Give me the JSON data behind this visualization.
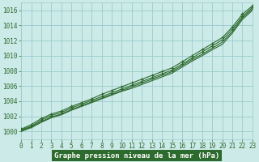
{
  "title": "Graphe pression niveau de la mer (hPa)",
  "background_color": "#cceae8",
  "plot_bg_color": "#cceae8",
  "grid_color": "#99cccc",
  "line_color": "#2d6a2d",
  "marker_color": "#2d6a2d",
  "xlabel_bg": "#2d6a2d",
  "xlabel_fg": "#ffffff",
  "xmin": 0,
  "xmax": 23,
  "ymin": 999,
  "ymax": 1017,
  "yticks": [
    1000,
    1002,
    1004,
    1006,
    1008,
    1010,
    1012,
    1014,
    1016
  ],
  "xticks": [
    0,
    1,
    2,
    3,
    4,
    5,
    6,
    7,
    8,
    9,
    10,
    11,
    12,
    13,
    14,
    15,
    16,
    17,
    18,
    19,
    20,
    21,
    22,
    23
  ],
  "series": [
    [
      1000.0,
      1000.5,
      1001.2,
      1001.8,
      1002.2,
      1002.8,
      1003.3,
      1003.8,
      1004.3,
      1004.8,
      1005.3,
      1005.7,
      1006.2,
      1006.7,
      1007.2,
      1007.7,
      1008.5,
      1009.3,
      1010.0,
      1010.8,
      1011.5,
      1013.0,
      1014.8,
      1016.0
    ],
    [
      1000.1,
      1000.6,
      1001.3,
      1001.9,
      1002.3,
      1002.9,
      1003.4,
      1003.9,
      1004.4,
      1004.9,
      1005.4,
      1005.9,
      1006.4,
      1006.9,
      1007.4,
      1007.9,
      1008.7,
      1009.5,
      1010.2,
      1011.0,
      1011.8,
      1013.2,
      1015.0,
      1016.2
    ],
    [
      1000.2,
      1000.7,
      1001.5,
      1002.1,
      1002.5,
      1003.1,
      1003.6,
      1004.1,
      1004.6,
      1005.1,
      1005.6,
      1006.1,
      1006.6,
      1007.1,
      1007.6,
      1008.1,
      1008.9,
      1009.7,
      1010.5,
      1011.3,
      1012.1,
      1013.5,
      1015.2,
      1016.4
    ],
    [
      1000.3,
      1000.9,
      1001.7,
      1002.3,
      1002.7,
      1003.3,
      1003.8,
      1004.3,
      1004.9,
      1005.4,
      1005.9,
      1006.4,
      1006.9,
      1007.4,
      1007.9,
      1008.4,
      1009.2,
      1010.0,
      1010.8,
      1011.6,
      1012.4,
      1013.8,
      1015.5,
      1016.6
    ]
  ],
  "marker_series": [
    2,
    3
  ],
  "tick_fontsize": 5.5,
  "xlabel_fontsize": 6.5
}
